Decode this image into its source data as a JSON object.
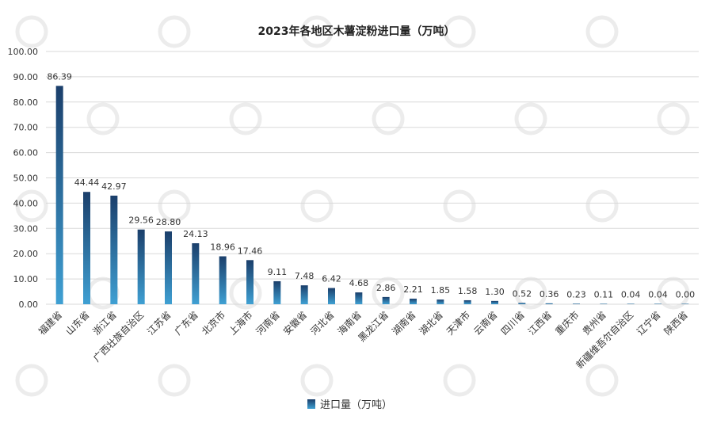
{
  "chart_data": {
    "type": "bar",
    "title": "2023年各地区木薯淀粉进口量（万吨）",
    "xlabel": "",
    "ylabel": "",
    "ylim": [
      0,
      100
    ],
    "yticks": [
      "0.00",
      "10.00",
      "20.00",
      "30.00",
      "40.00",
      "50.00",
      "60.00",
      "70.00",
      "80.00",
      "90.00",
      "100.00"
    ],
    "grid": true,
    "legend_position": "bottom",
    "categories": [
      "福建省",
      "山东省",
      "浙江省",
      "广西壮族自治区",
      "江苏省",
      "广东省",
      "北京市",
      "上海市",
      "河南省",
      "安徽省",
      "河北省",
      "海南省",
      "黑龙江省",
      "湖南省",
      "湖北省",
      "天津市",
      "云南省",
      "四川省",
      "江西省",
      "重庆市",
      "贵州省",
      "新疆维吾尔自治区",
      "辽宁省",
      "陕西省"
    ],
    "series": [
      {
        "name": "进口量（万吨）",
        "values": [
          86.39,
          44.44,
          42.97,
          29.56,
          28.8,
          24.13,
          18.96,
          17.46,
          9.11,
          7.48,
          6.42,
          4.68,
          2.86,
          2.21,
          1.85,
          1.58,
          1.3,
          0.52,
          0.36,
          0.23,
          0.11,
          0.04,
          0.04,
          0.0
        ],
        "labels": [
          "86.39",
          "44.44",
          "42.97",
          "29.56",
          "28.80",
          "24.13",
          "18.96",
          "17.46",
          "9.11",
          "7.48",
          "6.42",
          "4.68",
          "2.86",
          "2.21",
          "1.85",
          "1.58",
          "1.30",
          "0.52",
          "0.36",
          "0.23",
          "0.11",
          "0.04",
          "0.04",
          "0.00"
        ]
      }
    ]
  },
  "colors": {
    "bar_dark": "#1b3f6b",
    "bar_light": "#3fa0d3",
    "grid": "#d9d9d9",
    "text": "#333333",
    "title": "#222222",
    "watermark": "#ececec"
  }
}
